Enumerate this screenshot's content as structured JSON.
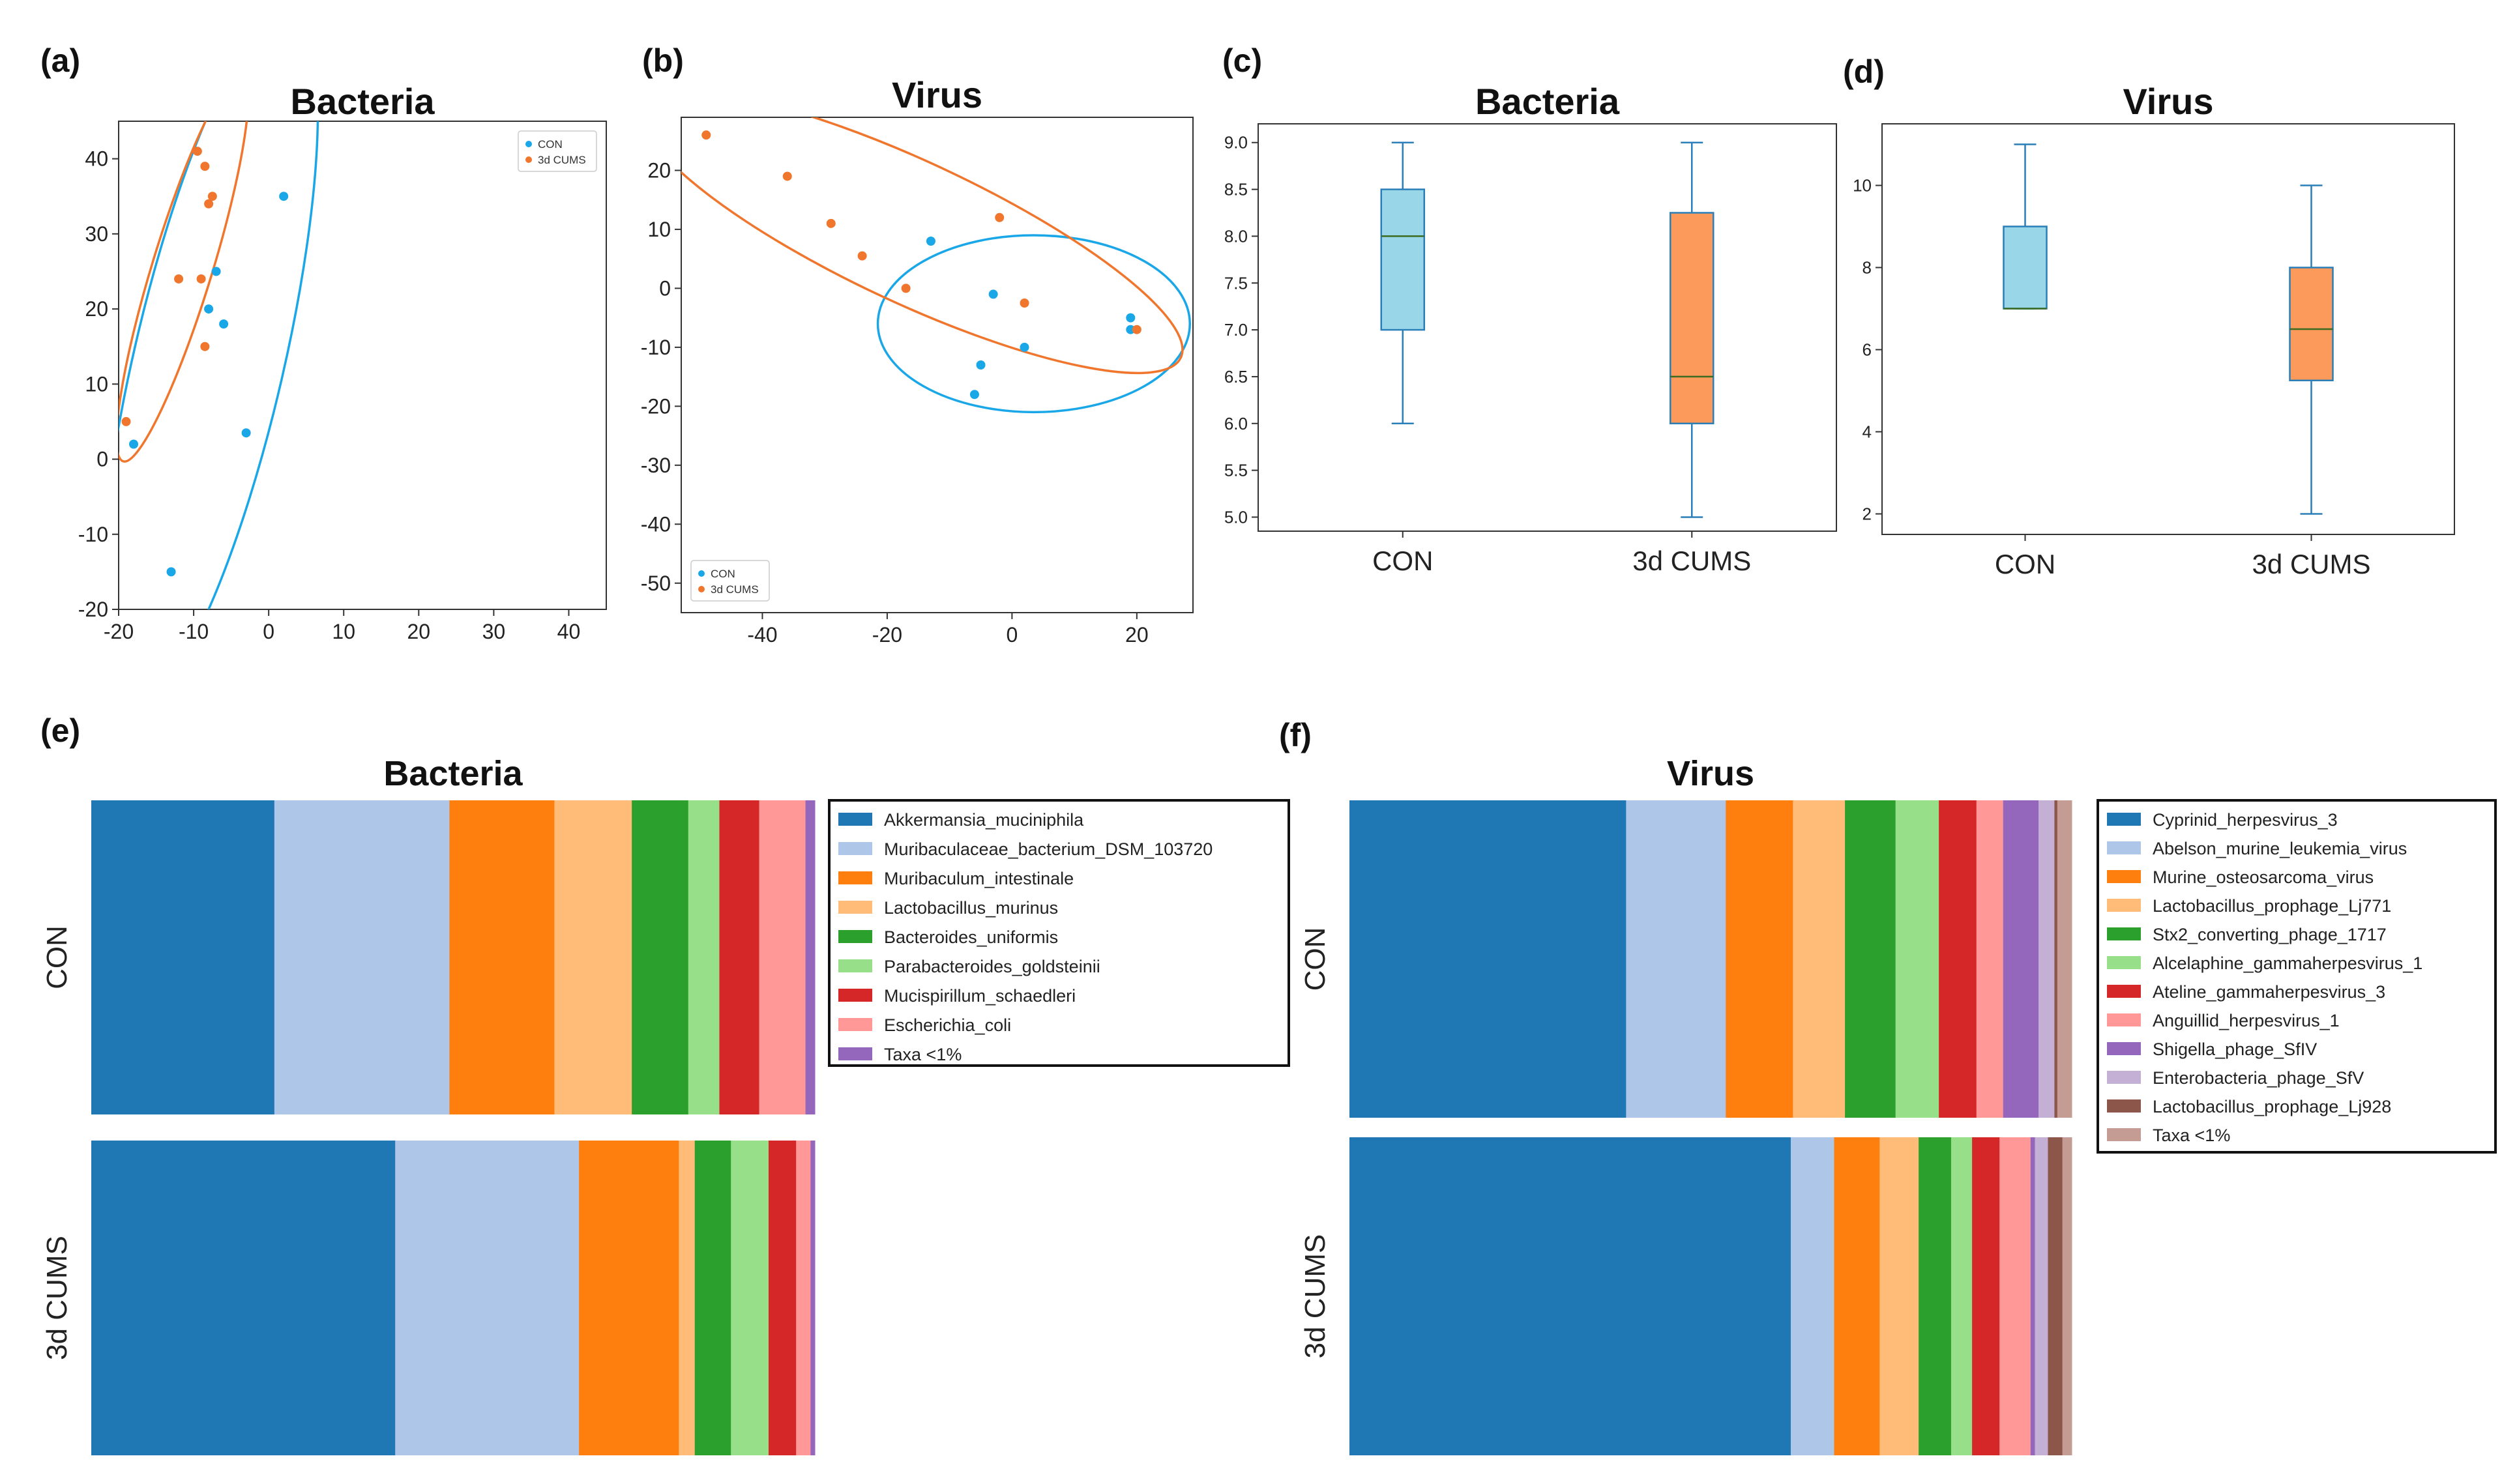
{
  "chart_data": [
    {
      "panel": "(a)",
      "type": "scatter",
      "title": "Bacteria",
      "xlim": [
        -20,
        45
      ],
      "ylim": [
        -20,
        45
      ],
      "xticks": [
        -20,
        -10,
        0,
        10,
        20,
        30,
        40
      ],
      "yticks": [
        -20,
        -10,
        0,
        10,
        20,
        30,
        40
      ],
      "legend_position": "top-right",
      "series": [
        {
          "name": "CON",
          "color": "#1aa7e8",
          "points": [
            [
              -18,
              2
            ],
            [
              -13,
              -15
            ],
            [
              -8,
              20
            ],
            [
              -7,
              25
            ],
            [
              -6,
              18
            ],
            [
              -3,
              3.5
            ],
            [
              2,
              35
            ]
          ]
        },
        {
          "name": "3d CUMS",
          "color": "#f0762d",
          "points": [
            [
              -19,
              5
            ],
            [
              -12,
              24
            ],
            [
              -9.5,
              41
            ],
            [
              -9,
              24
            ],
            [
              -8.5,
              15
            ],
            [
              -8.5,
              39
            ],
            [
              -8,
              34
            ],
            [
              -7.5,
              35
            ]
          ]
        }
      ],
      "ellipses": [
        {
          "series": "CON",
          "center": [
            -8,
            13
          ],
          "width": 96,
          "height": 20,
          "angle_deg": 77
        },
        {
          "series": "3d CUMS",
          "center": [
            -11.5,
            25.5
          ],
          "width": 54,
          "height": 8,
          "angle_deg": 73
        }
      ]
    },
    {
      "panel": "(b)",
      "type": "scatter",
      "title": "Virus",
      "xlim": [
        -53,
        29
      ],
      "ylim": [
        -55,
        29
      ],
      "xticks": [
        -40,
        -20,
        0,
        20
      ],
      "yticks": [
        -50,
        -40,
        -30,
        -20,
        -10,
        0,
        10,
        20
      ],
      "legend_position": "bottom-left",
      "series": [
        {
          "name": "CON",
          "color": "#1aa7e8",
          "points": [
            [
              -13,
              8
            ],
            [
              -6,
              -18
            ],
            [
              -5,
              -13
            ],
            [
              -3,
              -1
            ],
            [
              2,
              -10
            ],
            [
              19,
              -5
            ],
            [
              19,
              -7
            ]
          ]
        },
        {
          "name": "3d CUMS",
          "color": "#f0762d",
          "points": [
            [
              -49,
              26
            ],
            [
              -36,
              19
            ],
            [
              -29,
              11
            ],
            [
              -24,
              5.5
            ],
            [
              -17,
              0
            ],
            [
              -2,
              12
            ],
            [
              2,
              -2.5
            ],
            [
              20,
              -7
            ]
          ]
        }
      ],
      "ellipses": [
        {
          "series": "CON",
          "center": [
            3.5,
            -6
          ],
          "width": 50,
          "height": 30,
          "angle_deg": 0
        },
        {
          "series": "3d CUMS",
          "center": [
            -16,
            9.5
          ],
          "width": 95,
          "height": 24,
          "angle_deg": -25
        }
      ]
    },
    {
      "panel": "(c)",
      "type": "box",
      "title": "Bacteria",
      "categories": [
        "CON",
        "3d CUMS"
      ],
      "ylim": [
        4.85,
        9.2
      ],
      "yticks": [
        "5.0",
        "5.5",
        "6.0",
        "6.5",
        "7.0",
        "7.5",
        "8.0",
        "8.5",
        "9.0"
      ],
      "boxes": [
        {
          "category": "CON",
          "min": 6,
          "q1": 7,
          "median": 8,
          "q3": 8.5,
          "max": 9,
          "color": "#99d6e8"
        },
        {
          "category": "3d CUMS",
          "min": 5,
          "q1": 6,
          "median": 6.5,
          "q3": 8.25,
          "max": 9,
          "color": "#fb9a5a"
        }
      ]
    },
    {
      "panel": "(d)",
      "type": "box",
      "title": "Virus",
      "categories": [
        "CON",
        "3d CUMS"
      ],
      "ylim": [
        1.5,
        11.5
      ],
      "yticks": [
        "2",
        "4",
        "6",
        "8",
        "10"
      ],
      "boxes": [
        {
          "category": "CON",
          "min": 7,
          "q1": 7,
          "median": 7,
          "q3": 9,
          "max": 11,
          "color": "#99d6e8"
        },
        {
          "category": "3d CUMS",
          "min": 2,
          "q1": 5.25,
          "median": 6.5,
          "q3": 8,
          "max": 10,
          "color": "#fb9a5a"
        }
      ]
    },
    {
      "panel": "(e)",
      "type": "stacked-bar",
      "orientation": "horizontal",
      "title": "Bacteria",
      "categories": [
        "CON",
        "3d CUMS"
      ],
      "xlim": [
        0,
        1
      ],
      "series": [
        {
          "name": "Akkermansia_muciniphila",
          "color": "#1f77b4",
          "values": [
            0.253,
            0.42
          ]
        },
        {
          "name": "Muribaculaceae_bacterium_DSM_103720",
          "color": "#aec7e8",
          "values": [
            0.242,
            0.254
          ]
        },
        {
          "name": "Muribaculum_intestinale",
          "color": "#ff7f0e",
          "values": [
            0.145,
            0.138
          ]
        },
        {
          "name": "Lactobacillus_murinus",
          "color": "#ffbb78",
          "values": [
            0.107,
            0.022
          ]
        },
        {
          "name": "Bacteroides_uniformis",
          "color": "#2ca02c",
          "values": [
            0.078,
            0.05
          ]
        },
        {
          "name": "Parabacteroides_goldsteinii",
          "color": "#98df8a",
          "values": [
            0.043,
            0.052
          ]
        },
        {
          "name": "Mucispirillum_schaedleri",
          "color": "#d62728",
          "values": [
            0.055,
            0.038
          ]
        },
        {
          "name": "Escherichia_coli",
          "color": "#ff9896",
          "values": [
            0.064,
            0.02
          ]
        },
        {
          "name": "Taxa <1%",
          "color": "#9467bd",
          "values": [
            0.013,
            0.006
          ]
        }
      ]
    },
    {
      "panel": "(f)",
      "type": "stacked-bar",
      "orientation": "horizontal",
      "title": "Virus",
      "categories": [
        "CON",
        "3d CUMS"
      ],
      "xlim": [
        0,
        1
      ],
      "series": [
        {
          "name": "Cyprinid_herpesvirus_3",
          "color": "#1f77b4",
          "values": [
            0.383,
            0.611
          ]
        },
        {
          "name": "Abelson_murine_leukemia_virus",
          "color": "#aec7e8",
          "values": [
            0.138,
            0.06
          ]
        },
        {
          "name": "Murine_osteosarcoma_virus",
          "color": "#ff7f0e",
          "values": [
            0.093,
            0.063
          ]
        },
        {
          "name": "Lactobacillus_prophage_Lj771",
          "color": "#ffbb78",
          "values": [
            0.072,
            0.054
          ]
        },
        {
          "name": "Stx2_converting_phage_1717",
          "color": "#2ca02c",
          "values": [
            0.07,
            0.045
          ]
        },
        {
          "name": "Alcelaphine_gammaherpesvirus_1",
          "color": "#98df8a",
          "values": [
            0.06,
            0.029
          ]
        },
        {
          "name": "Ateline_gammaherpesvirus_3",
          "color": "#d62728",
          "values": [
            0.052,
            0.038
          ]
        },
        {
          "name": "Anguillid_herpesvirus_1",
          "color": "#ff9896",
          "values": [
            0.037,
            0.043
          ]
        },
        {
          "name": "Shigella_phage_SfIV",
          "color": "#9467bd",
          "values": [
            0.049,
            0.006
          ]
        },
        {
          "name": "Enterobacteria_phage_SfV",
          "color": "#c5b0d5",
          "values": [
            0.022,
            0.018
          ]
        },
        {
          "name": "Lactobacillus_prophage_Lj928",
          "color": "#8c564b",
          "values": [
            0.004,
            0.02
          ]
        },
        {
          "name": "Taxa <1%",
          "color": "#c49c94",
          "values": [
            0.02,
            0.013
          ]
        }
      ]
    }
  ]
}
